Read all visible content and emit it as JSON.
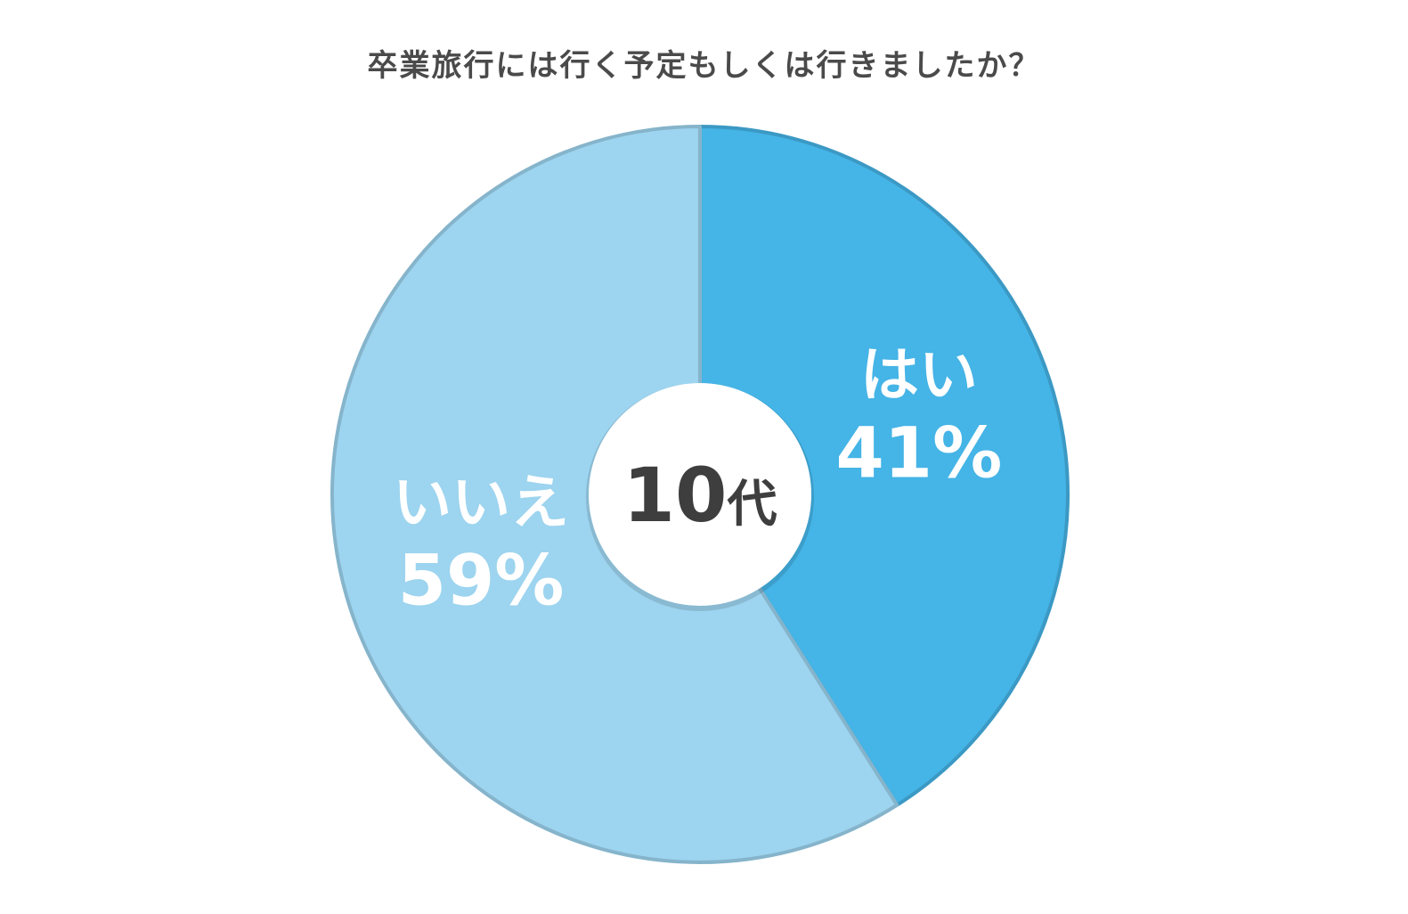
{
  "chart_data": {
    "type": "pie",
    "title": "卒業旅行には行く予定もしくは行きましたか？",
    "center_label": "10代",
    "slices": [
      {
        "label": "はい",
        "value": 41,
        "value_label": "41%",
        "color": "#45b4e6"
      },
      {
        "label": "いいえ",
        "value": 59,
        "value_label": "59%",
        "color": "#9dd4ef"
      }
    ],
    "start": "12 o'clock",
    "direction": "clockwise"
  }
}
